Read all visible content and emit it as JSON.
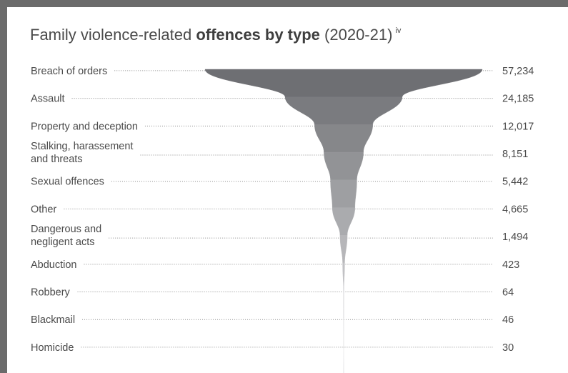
{
  "title": {
    "prefix": "Family violence-related ",
    "bold": "offences by type",
    "suffix": " (2020-21)",
    "superscript": "iv"
  },
  "chart_data": {
    "type": "funnel",
    "title": "Family violence-related offences by type (2020-21)",
    "categories": [
      "Breach of orders",
      "Assault",
      "Property and deception",
      "Stalking, harassement and threats",
      "Sexual offences",
      "Other",
      "Dangerous and negligent acts",
      "Abduction",
      "Robbery",
      "Blackmail",
      "Homicide"
    ],
    "category_lines": [
      [
        "Breach of orders"
      ],
      [
        "Assault"
      ],
      [
        "Property and deception"
      ],
      [
        "Stalking, harassement",
        "and threats"
      ],
      [
        "Sexual offences"
      ],
      [
        "Other"
      ],
      [
        "Dangerous and",
        "negligent acts"
      ],
      [
        "Abduction"
      ],
      [
        "Robbery"
      ],
      [
        "Blackmail"
      ],
      [
        "Homicide"
      ]
    ],
    "values": [
      57234,
      24185,
      12017,
      8151,
      5442,
      4665,
      1494,
      423,
      64,
      46,
      30
    ],
    "value_labels": [
      "57,234",
      "24,185",
      "12,017",
      "8,151",
      "5,442",
      "4,665",
      "1,494",
      "423",
      "64",
      "46",
      "30"
    ],
    "colors": {
      "top": "#6e6f73",
      "bottom": "#e6e6e8",
      "leader": "#8a8a8a",
      "text": "#4a4a4a",
      "frame": "#6b6b6b"
    }
  }
}
